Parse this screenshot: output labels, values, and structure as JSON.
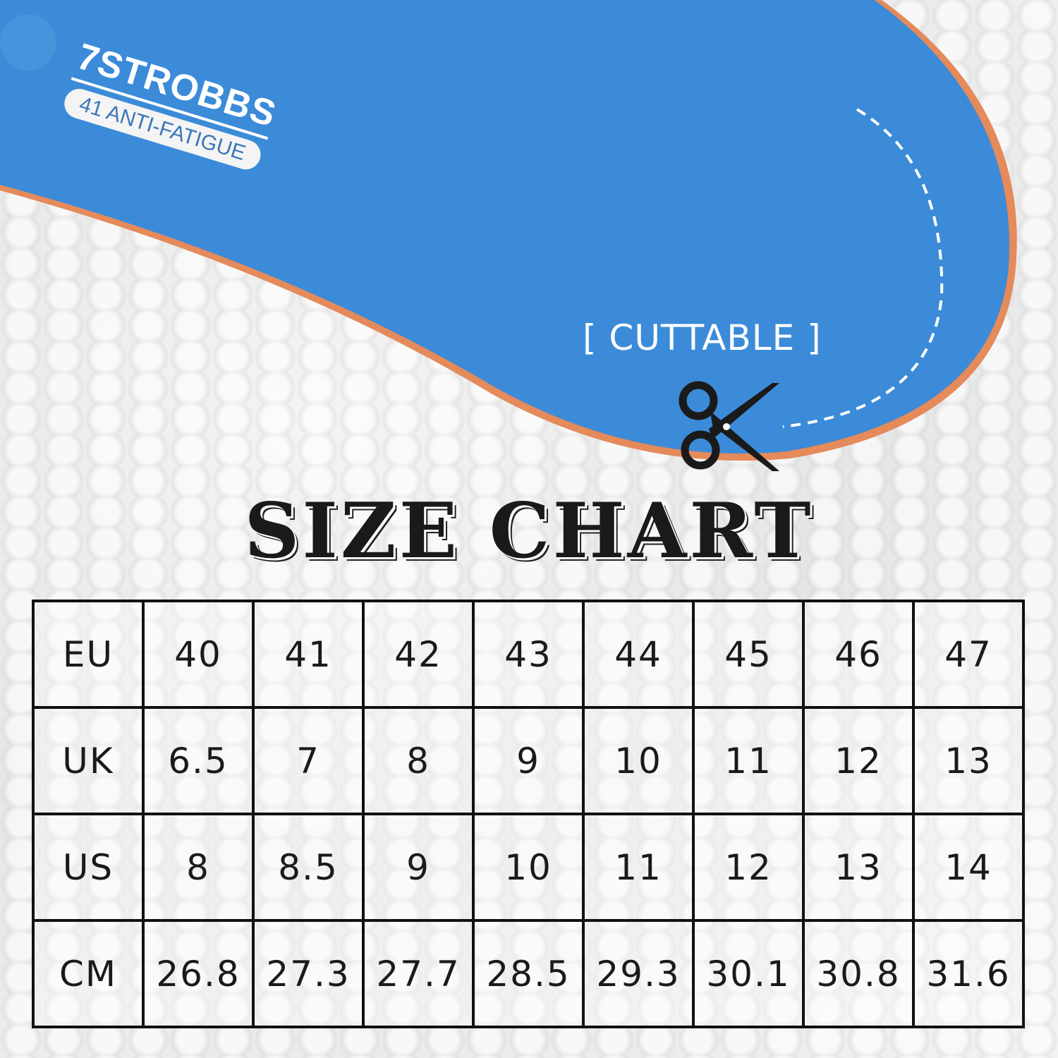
{
  "product": {
    "brand": "7STROBBS",
    "tag": "41 ANTI-FATIGUE",
    "cut_label": "[ CUTTABLE ]",
    "icons": [
      "scissors-icon"
    ],
    "colors": {
      "insole_blue": "#3b8bd9",
      "text_dark": "#1a1a1a"
    }
  },
  "title": "SIZE CHART",
  "table": {
    "rows": [
      {
        "label": "EU",
        "values": [
          "40",
          "41",
          "42",
          "43",
          "44",
          "45",
          "46",
          "47"
        ]
      },
      {
        "label": "UK",
        "values": [
          "6.5",
          "7",
          "8",
          "9",
          "10",
          "11",
          "12",
          "13"
        ]
      },
      {
        "label": "US",
        "values": [
          "8",
          "8.5",
          "9",
          "10",
          "11",
          "12",
          "13",
          "14"
        ]
      },
      {
        "label": "CM",
        "values": [
          "26.8",
          "27.3",
          "27.7",
          "28.5",
          "29.3",
          "30.1",
          "30.8",
          "31.6"
        ]
      }
    ]
  }
}
